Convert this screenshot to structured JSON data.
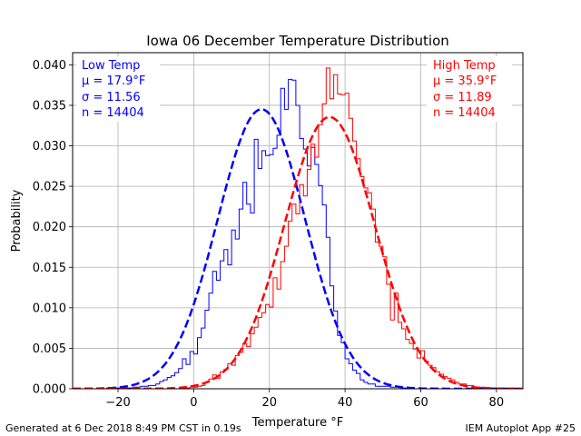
{
  "chart_data": {
    "type": "line",
    "title": "Iowa 06 December Temperature Distribution",
    "xlabel": "Temperature °F",
    "ylabel": "Probability",
    "xlim": [
      -32,
      87
    ],
    "ylim": [
      0,
      0.0415
    ],
    "xticks": [
      -20,
      0,
      20,
      40,
      60,
      80
    ],
    "xtick_labels": [
      "−20",
      "0",
      "20",
      "40",
      "60",
      "80"
    ],
    "yticks": [
      0.0,
      0.005,
      0.01,
      0.015,
      0.02,
      0.025,
      0.03,
      0.035,
      0.04
    ],
    "ytick_labels": [
      "0.000",
      "0.005",
      "0.010",
      "0.015",
      "0.020",
      "0.025",
      "0.030",
      "0.035",
      "0.040"
    ],
    "grid": true,
    "series": [
      {
        "name": "Low Temp",
        "color": "#0000ff",
        "mu": 17.9,
        "sigma": 11.56,
        "n": 14404,
        "stats_lines": [
          "Low Temp",
          "μ = 17.9°F",
          "σ = 11.56",
          "n = 14404"
        ],
        "hist": [
          [
            -27,
            0.0
          ],
          [
            -23,
            0.0001
          ],
          [
            -16,
            0.0002
          ],
          [
            -14,
            0.0003
          ],
          [
            -12,
            0.0004
          ],
          [
            -10,
            0.0006
          ],
          [
            -9,
            0.0009
          ],
          [
            -8,
            0.0011
          ],
          [
            -7,
            0.0014
          ],
          [
            -6,
            0.0016
          ],
          [
            -5,
            0.002
          ],
          [
            -4,
            0.0025
          ],
          [
            -3,
            0.0037
          ],
          [
            -2,
            0.003
          ],
          [
            -1,
            0.0046
          ],
          [
            0,
            0.0043
          ],
          [
            1,
            0.0063
          ],
          [
            2,
            0.0075
          ],
          [
            3,
            0.0097
          ],
          [
            4,
            0.0118
          ],
          [
            5,
            0.0145
          ],
          [
            6,
            0.0134
          ],
          [
            7,
            0.0158
          ],
          [
            8,
            0.0172
          ],
          [
            9,
            0.0153
          ],
          [
            10,
            0.0196
          ],
          [
            11,
            0.0185
          ],
          [
            12,
            0.0222
          ],
          [
            13,
            0.0255
          ],
          [
            14,
            0.0228
          ],
          [
            15,
            0.0217
          ],
          [
            16,
            0.0308
          ],
          [
            17,
            0.0272
          ],
          [
            18,
            0.0294
          ],
          [
            19,
            0.0288
          ],
          [
            20,
            0.0289
          ],
          [
            21,
            0.0297
          ],
          [
            22,
            0.0313
          ],
          [
            23,
            0.0371
          ],
          [
            24,
            0.0345
          ],
          [
            25,
            0.0382
          ],
          [
            26,
            0.0381
          ],
          [
            27,
            0.035
          ],
          [
            28,
            0.0309
          ],
          [
            29,
            0.0296
          ],
          [
            30,
            0.0275
          ],
          [
            31,
            0.0298
          ],
          [
            32,
            0.0277
          ],
          [
            33,
            0.0251
          ],
          [
            34,
            0.0227
          ],
          [
            35,
            0.0187
          ],
          [
            36,
            0.0127
          ],
          [
            37,
            0.0096
          ],
          [
            38,
            0.0066
          ],
          [
            39,
            0.0057
          ],
          [
            40,
            0.0037
          ],
          [
            41,
            0.0031
          ],
          [
            42,
            0.0023
          ],
          [
            43,
            0.0019
          ],
          [
            44,
            0.0011
          ],
          [
            45,
            0.0008
          ],
          [
            46,
            0.0006
          ],
          [
            48,
            0.0003
          ],
          [
            52,
            0.0002
          ],
          [
            55,
            0.0001
          ],
          [
            58,
            0.0
          ]
        ]
      },
      {
        "name": "High Temp",
        "color": "#ff0000",
        "mu": 35.9,
        "sigma": 11.89,
        "n": 14404,
        "stats_lines": [
          "High Temp",
          "μ = 35.9°F",
          "σ = 11.89",
          "n = 14404"
        ],
        "hist": [
          [
            -5,
            0.0
          ],
          [
            -3,
            0.0001
          ],
          [
            -1,
            0.0002
          ],
          [
            1,
            0.0003
          ],
          [
            2,
            0.0004
          ],
          [
            3,
            0.0008
          ],
          [
            4,
            0.0012
          ],
          [
            5,
            0.0017
          ],
          [
            6,
            0.0013
          ],
          [
            7,
            0.0021
          ],
          [
            8,
            0.0024
          ],
          [
            9,
            0.0031
          ],
          [
            10,
            0.0029
          ],
          [
            11,
            0.0041
          ],
          [
            12,
            0.0045
          ],
          [
            13,
            0.0056
          ],
          [
            14,
            0.0052
          ],
          [
            15,
            0.0068
          ],
          [
            16,
            0.0076
          ],
          [
            17,
            0.0088
          ],
          [
            18,
            0.0094
          ],
          [
            19,
            0.0104
          ],
          [
            20,
            0.0101
          ],
          [
            21,
            0.0137
          ],
          [
            22,
            0.0123
          ],
          [
            23,
            0.0157
          ],
          [
            24,
            0.0176
          ],
          [
            25,
            0.0207
          ],
          [
            26,
            0.0228
          ],
          [
            27,
            0.0216
          ],
          [
            28,
            0.0252
          ],
          [
            29,
            0.0238
          ],
          [
            30,
            0.0271
          ],
          [
            31,
            0.0302
          ],
          [
            32,
            0.0286
          ],
          [
            33,
            0.0326
          ],
          [
            34,
            0.0352
          ],
          [
            35,
            0.0396
          ],
          [
            36,
            0.0358
          ],
          [
            37,
            0.0388
          ],
          [
            38,
            0.0364
          ],
          [
            39,
            0.0363
          ],
          [
            40,
            0.0365
          ],
          [
            41,
            0.0334
          ],
          [
            42,
            0.0306
          ],
          [
            43,
            0.0284
          ],
          [
            44,
            0.0262
          ],
          [
            45,
            0.0248
          ],
          [
            46,
            0.0242
          ],
          [
            47,
            0.0222
          ],
          [
            48,
            0.0181
          ],
          [
            49,
            0.0176
          ],
          [
            50,
            0.0163
          ],
          [
            51,
            0.0129
          ],
          [
            52,
            0.0085
          ],
          [
            53,
            0.0118
          ],
          [
            54,
            0.0082
          ],
          [
            55,
            0.0074
          ],
          [
            56,
            0.0061
          ],
          [
            57,
            0.0056
          ],
          [
            58,
            0.0049
          ],
          [
            59,
            0.0038
          ],
          [
            60,
            0.0047
          ],
          [
            61,
            0.0034
          ],
          [
            62,
            0.0029
          ],
          [
            63,
            0.0026
          ],
          [
            64,
            0.0021
          ],
          [
            65,
            0.0018
          ],
          [
            66,
            0.0015
          ],
          [
            67,
            0.0013
          ],
          [
            68,
            0.0011
          ],
          [
            69,
            0.0008
          ],
          [
            70,
            0.0006
          ],
          [
            72,
            0.0004
          ],
          [
            74,
            0.0002
          ],
          [
            77,
            0.0001
          ],
          [
            82,
            0.0
          ]
        ]
      }
    ]
  },
  "footer": {
    "generated": "Generated at 6 Dec 2018 8:49 PM CST in 0.19s",
    "app": "IEM Autoplot App #25"
  }
}
